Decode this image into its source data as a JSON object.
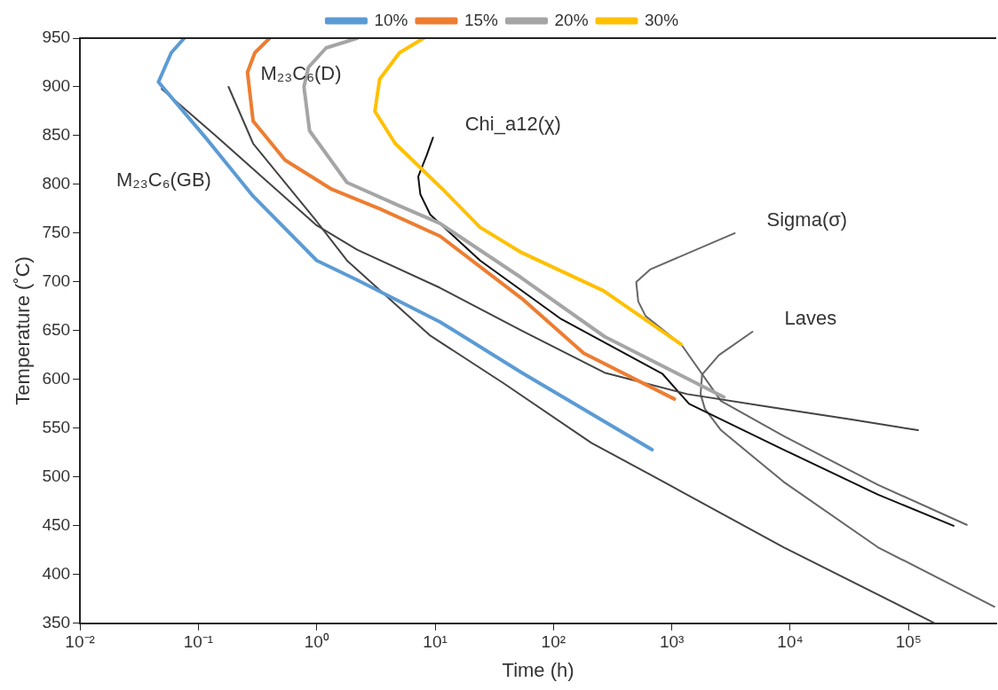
{
  "chart_data": {
    "type": "line",
    "xlabel": "Time (h)",
    "ylabel": "Temperature (˚C)",
    "xlim": [
      0.01,
      550000
    ],
    "ylim": [
      350,
      950
    ],
    "log": "x",
    "xticks": [
      {
        "value": 0.01,
        "label": "10⁻²"
      },
      {
        "value": 0.1,
        "label": "10⁻¹"
      },
      {
        "value": 1,
        "label": "10⁰"
      },
      {
        "value": 10,
        "label": "10¹"
      },
      {
        "value": 100,
        "label": "10²"
      },
      {
        "value": 1000,
        "label": "10³"
      },
      {
        "value": 10000,
        "label": "10⁴"
      },
      {
        "value": 100000,
        "label": "10⁵"
      }
    ],
    "yticks": [
      350,
      400,
      450,
      500,
      550,
      600,
      650,
      700,
      750,
      800,
      850,
      900,
      950
    ],
    "grid": false,
    "legend": "top",
    "marker": "none",
    "line_style": "solid",
    "series": [
      {
        "name": "10%",
        "color": "#5b9bd5",
        "x": [
          0.076,
          0.059,
          0.046,
          0.115,
          0.29,
          1.0,
          2.2,
          11,
          54,
          680
        ],
        "values": [
          950,
          935,
          905,
          848,
          788,
          722,
          702,
          659,
          607,
          528
        ]
      },
      {
        "name": "15%",
        "color": "#ed7d31",
        "x": [
          0.4,
          0.3,
          0.26,
          0.29,
          0.54,
          1.34,
          3.4,
          11,
          54,
          180,
          1050
        ],
        "values": [
          950,
          935,
          915,
          865,
          825,
          795,
          775,
          747,
          683,
          627,
          580
        ]
      },
      {
        "name": "20%",
        "color": "#a5a5a5",
        "x": [
          2.2,
          1.2,
          0.85,
          0.78,
          0.87,
          1.8,
          5,
          11,
          54,
          270,
          2750
        ],
        "values": [
          950,
          940,
          920,
          900,
          855,
          802,
          778,
          760,
          704,
          644,
          582
        ]
      },
      {
        "name": "30%",
        "color": "#ffc000",
        "x": [
          8,
          5,
          3.4,
          3.1,
          4.6,
          11.6,
          24,
          54,
          265,
          1200
        ],
        "values": [
          950,
          935,
          908,
          875,
          842,
          795,
          756,
          730,
          691,
          636
        ]
      },
      {
        "color": "#444444",
        "x": [
          0.049,
          0.14,
          0.35,
          1.0,
          2.2,
          11,
          54,
          270,
          1350,
          6600,
          33000,
          120000
        ],
        "values": [
          898,
          850,
          807,
          758,
          733,
          694,
          650,
          607,
          585,
          572,
          559,
          548
        ]
      },
      {
        "color": "#444444",
        "x": [
          0.18,
          0.29,
          1.0,
          1.8,
          9.1,
          38,
          209,
          667,
          8800,
          167000
        ],
        "values": [
          900,
          842,
          762,
          722,
          645,
          596,
          535,
          502,
          428,
          350
        ]
      },
      {
        "color": "#111111",
        "x": [
          9.6,
          8.5,
          7.2,
          7.5,
          9.1,
          24,
          116,
          830,
          1400,
          8800,
          55000,
          240000
        ],
        "values": [
          848,
          830,
          808,
          790,
          769,
          722,
          662,
          606,
          575,
          528,
          482,
          450
        ]
      },
      {
        "color": "#666666",
        "x": [
          3400,
          660,
          500,
          520,
          600,
          1200,
          2600,
          8800,
          55000,
          310000
        ],
        "values": [
          750,
          713,
          700,
          680,
          665,
          636,
          578,
          542,
          492,
          451
        ]
      },
      {
        "color": "#666666",
        "x": [
          4800,
          2500,
          1800,
          1750,
          1900,
          2600,
          8800,
          55000,
          530000
        ],
        "values": [
          649,
          625,
          605,
          585,
          570,
          548,
          495,
          428,
          367
        ]
      }
    ],
    "annotations": [
      {
        "text": "M₂₃C₆(GB)",
        "x": 0.35,
        "y": 807
      },
      {
        "text": "M₂₃C₆(D)",
        "x": 0.18,
        "y": 900
      },
      {
        "text": "Chi_a12(χ)",
        "x": 9.6,
        "y": 848
      },
      {
        "text": "Sigma(σ)",
        "x": 3400,
        "y": 750
      },
      {
        "text": "Laves",
        "x": 4800,
        "y": 649
      }
    ]
  }
}
